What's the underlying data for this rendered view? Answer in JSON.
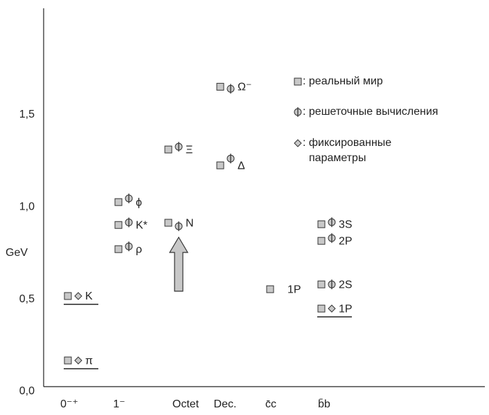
{
  "chart_data": {
    "type": "scatter",
    "y_label": "GeV",
    "ylim": [
      0,
      2.05
    ],
    "yticks": [
      {
        "value": 0,
        "label": "0,0"
      },
      {
        "value": 0.5,
        "label": "0,5"
      },
      {
        "value": 1.0,
        "label": "1,0"
      },
      {
        "value": 1.5,
        "label": "1,5"
      }
    ],
    "legend": {
      "real": ": реальный мир",
      "lattice": ": решеточные вычисления",
      "fixed": [
        ": фиксированные",
        "параметры"
      ]
    },
    "groups": [
      {
        "category": "0⁻⁺",
        "states": [
          {
            "label": "π",
            "real": 0.142,
            "fixed": 0.142
          },
          {
            "label": "K",
            "real": 0.491,
            "fixed": 0.491
          }
        ]
      },
      {
        "category": "1⁻",
        "states": [
          {
            "label": "ρ",
            "real": 0.745,
            "lattice": 0.76
          },
          {
            "label": "K*",
            "real": 0.876,
            "lattice": 0.89
          },
          {
            "label": "ϕ",
            "real": 1.0,
            "lattice": 1.02
          }
        ]
      },
      {
        "category": "Octet",
        "states": [
          {
            "label": "N",
            "real": 0.888,
            "lattice": 0.869
          },
          {
            "label": "Ξ",
            "real": 1.285,
            "lattice": 1.3
          }
        ]
      },
      {
        "category": "Dec.",
        "states": [
          {
            "label": "Δ",
            "real": 1.199,
            "lattice": 1.236
          },
          {
            "label": "Ω⁻",
            "real": 1.625,
            "lattice": 1.614
          }
        ]
      },
      {
        "category": "c̄c",
        "states": [
          {
            "label": "1P",
            "real": 0.528
          }
        ]
      },
      {
        "category": "b̄b",
        "states": [
          {
            "label": "1P",
            "real": 0.423,
            "fixed": 0.423
          },
          {
            "label": "2S",
            "real": 0.554,
            "lattice": 0.554
          },
          {
            "label": "2P",
            "real": 0.79,
            "lattice": 0.805
          },
          {
            "label": "3S",
            "real": 0.88,
            "lattice": 0.891
          }
        ]
      }
    ]
  }
}
